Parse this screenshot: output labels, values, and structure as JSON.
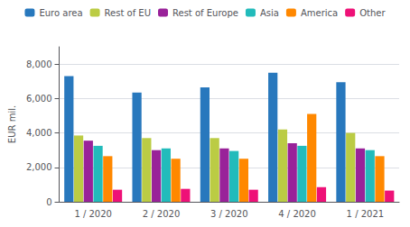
{
  "chart_data": {
    "type": "bar",
    "categories": [
      "1 / 2020",
      "2 / 2020",
      "3 / 2020",
      "4 / 2020",
      "1 / 2021"
    ],
    "series": [
      {
        "name": "Euro area",
        "color": "#2878bd",
        "values": [
          7300,
          6350,
          6650,
          7500,
          6950
        ]
      },
      {
        "name": "Rest of EU",
        "color": "#bbcc44",
        "values": [
          3850,
          3700,
          3700,
          4200,
          4000
        ]
      },
      {
        "name": "Rest of Europe",
        "color": "#992299",
        "values": [
          3550,
          3000,
          3100,
          3400,
          3100
        ]
      },
      {
        "name": "Asia",
        "color": "#22bbbb",
        "values": [
          3250,
          3100,
          2950,
          3250,
          3000
        ]
      },
      {
        "name": "America",
        "color": "#ff8800",
        "values": [
          2650,
          2500,
          2500,
          5100,
          2650
        ]
      },
      {
        "name": "Other",
        "color": "#ee1177",
        "values": [
          700,
          750,
          700,
          850,
          650
        ]
      }
    ],
    "ylabel": "EUR mil.",
    "ylim": [
      0,
      9000
    ],
    "yticks": [
      0,
      {
        "value": 2000,
        "label": "2,000"
      },
      {
        "value": 4000,
        "label": "4,000"
      },
      {
        "value": 6000,
        "label": "6,000"
      },
      {
        "value": 8000,
        "label": "8,000"
      }
    ],
    "grid": true,
    "legend": "top"
  }
}
